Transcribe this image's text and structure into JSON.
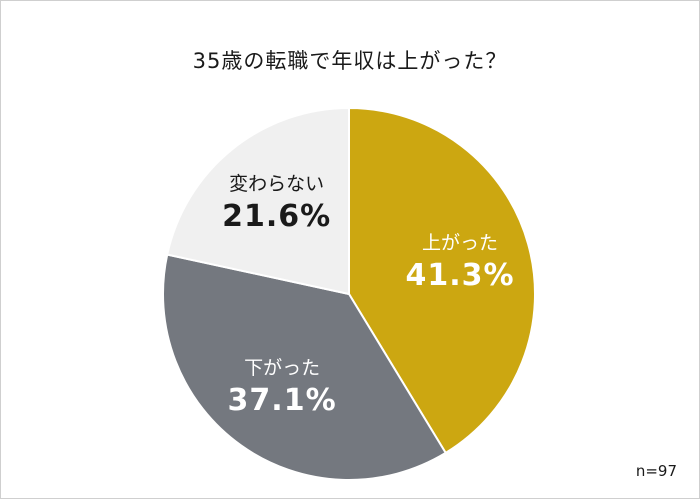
{
  "chart_data": {
    "type": "pie",
    "title": "35歳の転職で年収は上がった？",
    "note": "n=97",
    "slices": [
      {
        "label": "上がった",
        "value": 41.3,
        "value_text": "41.3%",
        "color": "#cca711",
        "text_color": "#ffffff"
      },
      {
        "label": "下がった",
        "value": 37.1,
        "value_text": "37.1%",
        "color": "#74787f",
        "text_color": "#ffffff"
      },
      {
        "label": "変わらない",
        "value": 21.6,
        "value_text": "21.6%",
        "color": "#f0f0f0",
        "text_color": "#1a1a1a"
      }
    ]
  }
}
